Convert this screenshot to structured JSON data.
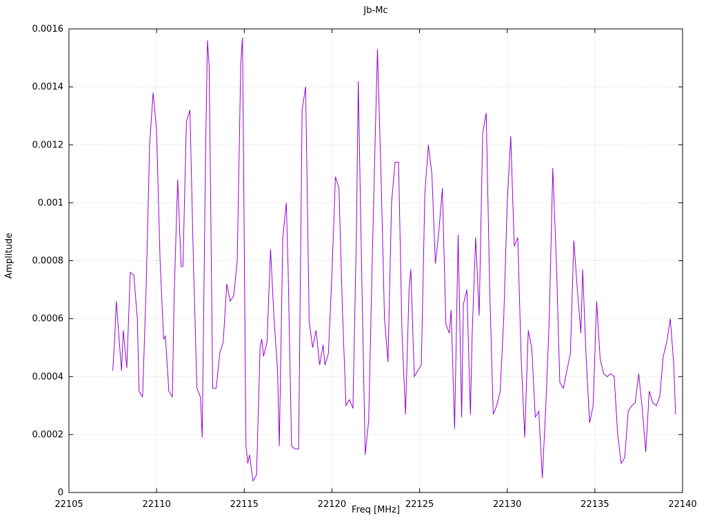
{
  "title": "Jb-Mc",
  "chart_data": {
    "type": "line",
    "title": "Jb-Mc",
    "xlabel": "Freq [MHz]",
    "ylabel": "Amplitude",
    "xlim": [
      22105,
      22140
    ],
    "ylim": [
      0,
      0.0016
    ],
    "grid": true,
    "legend": "none",
    "line_color": "#9400d3",
    "grid_color": "#b5ccb5",
    "axis_color": "#000000",
    "x_ticks": {
      "values": [
        22105,
        22110,
        22115,
        22120,
        22125,
        22130,
        22135,
        22140
      ],
      "labels": [
        "22105",
        "22110",
        "22115",
        "22120",
        "22125",
        "22130",
        "22135",
        "22140"
      ]
    },
    "y_ticks": {
      "values": [
        0,
        0.0002,
        0.0004,
        0.0006,
        0.0008,
        0.001,
        0.0012,
        0.0014,
        0.0016
      ],
      "labels": [
        "0",
        "0.0002",
        "0.0004",
        "0.0006",
        "0.0008",
        "0.001",
        "0.0012",
        "0.0014",
        "0.0016"
      ]
    },
    "series": [
      {
        "name": "Jb-Mc",
        "points": [
          [
            22107.5,
            0.00042
          ],
          [
            22107.6,
            0.00052
          ],
          [
            22107.7,
            0.00066
          ],
          [
            22107.9,
            0.0005
          ],
          [
            22108.0,
            0.00042
          ],
          [
            22108.1,
            0.00056
          ],
          [
            22108.3,
            0.00043
          ],
          [
            22108.5,
            0.00076
          ],
          [
            22108.7,
            0.00075
          ],
          [
            22108.9,
            0.0006
          ],
          [
            22109.0,
            0.00035
          ],
          [
            22109.2,
            0.00033
          ],
          [
            22109.4,
            0.0007
          ],
          [
            22109.6,
            0.0012
          ],
          [
            22109.8,
            0.00138
          ],
          [
            22110.0,
            0.00125
          ],
          [
            22110.2,
            0.0008
          ],
          [
            22110.4,
            0.00053
          ],
          [
            22110.5,
            0.00054
          ],
          [
            22110.7,
            0.00035
          ],
          [
            22110.9,
            0.00033
          ],
          [
            22111.0,
            0.00068
          ],
          [
            22111.2,
            0.00108
          ],
          [
            22111.4,
            0.00078
          ],
          [
            22111.5,
            0.00078
          ],
          [
            22111.7,
            0.00128
          ],
          [
            22111.9,
            0.00132
          ],
          [
            22112.1,
            0.0008
          ],
          [
            22112.3,
            0.00036
          ],
          [
            22112.5,
            0.00033
          ],
          [
            22112.6,
            0.00019
          ],
          [
            22112.8,
            0.0012
          ],
          [
            22112.9,
            0.00156
          ],
          [
            22113.0,
            0.00147
          ],
          [
            22113.2,
            0.00036
          ],
          [
            22113.4,
            0.00036
          ],
          [
            22113.6,
            0.00048
          ],
          [
            22113.8,
            0.00052
          ],
          [
            22114.0,
            0.00072
          ],
          [
            22114.2,
            0.00066
          ],
          [
            22114.4,
            0.00068
          ],
          [
            22114.6,
            0.0008
          ],
          [
            22114.8,
            0.00148
          ],
          [
            22114.9,
            0.00157
          ],
          [
            22115.0,
            0.00085
          ],
          [
            22115.1,
            0.00016
          ],
          [
            22115.2,
            0.0001
          ],
          [
            22115.3,
            0.00013
          ],
          [
            22115.5,
            4e-05
          ],
          [
            22115.7,
            6e-05
          ],
          [
            22115.9,
            0.0005
          ],
          [
            22116.0,
            0.00053
          ],
          [
            22116.1,
            0.00047
          ],
          [
            22116.3,
            0.00052
          ],
          [
            22116.5,
            0.00084
          ],
          [
            22116.7,
            0.0006
          ],
          [
            22116.9,
            0.00042
          ],
          [
            22117.0,
            0.00016
          ],
          [
            22117.2,
            0.00088
          ],
          [
            22117.4,
            0.001
          ],
          [
            22117.5,
            0.00077
          ],
          [
            22117.7,
            0.00016
          ],
          [
            22117.9,
            0.00015
          ],
          [
            22118.1,
            0.00015
          ],
          [
            22118.3,
            0.00132
          ],
          [
            22118.5,
            0.0014
          ],
          [
            22118.7,
            0.00059
          ],
          [
            22118.9,
            0.0005
          ],
          [
            22119.1,
            0.00056
          ],
          [
            22119.3,
            0.00044
          ],
          [
            22119.5,
            0.00051
          ],
          [
            22119.6,
            0.00044
          ],
          [
            22119.8,
            0.00048
          ],
          [
            22120.0,
            0.00075
          ],
          [
            22120.2,
            0.00109
          ],
          [
            22120.4,
            0.00105
          ],
          [
            22120.6,
            0.00063
          ],
          [
            22120.8,
            0.0003
          ],
          [
            22121.0,
            0.00032
          ],
          [
            22121.2,
            0.00029
          ],
          [
            22121.4,
            0.0009
          ],
          [
            22121.5,
            0.00142
          ],
          [
            22121.7,
            0.00075
          ],
          [
            22121.9,
            0.00013
          ],
          [
            22122.1,
            0.00025
          ],
          [
            22122.3,
            0.0008
          ],
          [
            22122.5,
            0.0013
          ],
          [
            22122.6,
            0.00153
          ],
          [
            22122.8,
            0.0011
          ],
          [
            22123.0,
            0.0006
          ],
          [
            22123.2,
            0.00045
          ],
          [
            22123.4,
            0.001
          ],
          [
            22123.6,
            0.00114
          ],
          [
            22123.8,
            0.00114
          ],
          [
            22124.0,
            0.00055
          ],
          [
            22124.2,
            0.00027
          ],
          [
            22124.4,
            0.0007
          ],
          [
            22124.5,
            0.00077
          ],
          [
            22124.7,
            0.0004
          ],
          [
            22124.9,
            0.00042
          ],
          [
            22125.1,
            0.00044
          ],
          [
            22125.3,
            0.00103
          ],
          [
            22125.5,
            0.0012
          ],
          [
            22125.7,
            0.0011
          ],
          [
            22125.9,
            0.00079
          ],
          [
            22126.1,
            0.0009
          ],
          [
            22126.3,
            0.00105
          ],
          [
            22126.5,
            0.00058
          ],
          [
            22126.7,
            0.00055
          ],
          [
            22126.8,
            0.00063
          ],
          [
            22127.0,
            0.00022
          ],
          [
            22127.2,
            0.00089
          ],
          [
            22127.4,
            0.00026
          ],
          [
            22127.5,
            0.00065
          ],
          [
            22127.7,
            0.0007
          ],
          [
            22127.9,
            0.00027
          ],
          [
            22128.0,
            0.00055
          ],
          [
            22128.2,
            0.00088
          ],
          [
            22128.4,
            0.00061
          ],
          [
            22128.6,
            0.00124
          ],
          [
            22128.8,
            0.00131
          ],
          [
            22129.0,
            0.0007
          ],
          [
            22129.2,
            0.00027
          ],
          [
            22129.4,
            0.0003
          ],
          [
            22129.6,
            0.00035
          ],
          [
            22129.8,
            0.0006
          ],
          [
            22130.0,
            0.001
          ],
          [
            22130.2,
            0.00123
          ],
          [
            22130.4,
            0.00085
          ],
          [
            22130.6,
            0.00088
          ],
          [
            22130.8,
            0.00045
          ],
          [
            22131.0,
            0.00019
          ],
          [
            22131.2,
            0.00056
          ],
          [
            22131.4,
            0.0005
          ],
          [
            22131.6,
            0.00026
          ],
          [
            22131.8,
            0.00028
          ],
          [
            22132.0,
            5e-05
          ],
          [
            22132.2,
            0.0003
          ],
          [
            22132.4,
            0.0006
          ],
          [
            22132.6,
            0.00112
          ],
          [
            22132.8,
            0.0008
          ],
          [
            22133.0,
            0.00038
          ],
          [
            22133.2,
            0.00036
          ],
          [
            22133.4,
            0.00042
          ],
          [
            22133.6,
            0.00048
          ],
          [
            22133.8,
            0.00087
          ],
          [
            22134.0,
            0.0007
          ],
          [
            22134.2,
            0.00055
          ],
          [
            22134.3,
            0.00077
          ],
          [
            22134.5,
            0.00047
          ],
          [
            22134.7,
            0.00024
          ],
          [
            22134.9,
            0.0003
          ],
          [
            22135.1,
            0.00066
          ],
          [
            22135.3,
            0.00046
          ],
          [
            22135.5,
            0.00041
          ],
          [
            22135.7,
            0.0004
          ],
          [
            22135.9,
            0.00041
          ],
          [
            22136.1,
            0.0004
          ],
          [
            22136.3,
            0.0002
          ],
          [
            22136.5,
            0.0001
          ],
          [
            22136.7,
            0.00012
          ],
          [
            22136.9,
            0.00028
          ],
          [
            22137.1,
            0.0003
          ],
          [
            22137.3,
            0.00031
          ],
          [
            22137.5,
            0.00041
          ],
          [
            22137.7,
            0.00029
          ],
          [
            22137.9,
            0.00014
          ],
          [
            22138.1,
            0.00035
          ],
          [
            22138.3,
            0.00031
          ],
          [
            22138.5,
            0.0003
          ],
          [
            22138.7,
            0.00033
          ],
          [
            22138.9,
            0.00047
          ],
          [
            22139.1,
            0.00052
          ],
          [
            22139.3,
            0.0006
          ],
          [
            22139.5,
            0.00044
          ],
          [
            22139.6,
            0.00027
          ]
        ]
      }
    ]
  }
}
